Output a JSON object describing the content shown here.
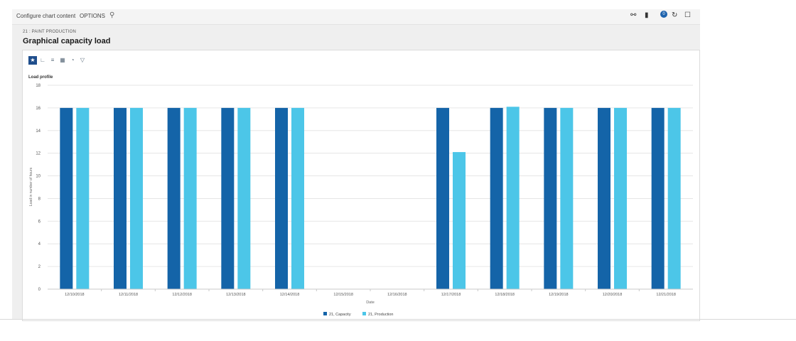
{
  "toolbar": {
    "configure_label": "Configure chart content",
    "options_label": "OPTIONS",
    "search_icon": "search-icon",
    "notification_count": "0"
  },
  "header": {
    "breadcrumb": "21 : PAINT PRODUCTION",
    "title": "Graphical capacity load"
  },
  "chart_toolbar": {
    "icons": [
      "star-icon",
      "line-chart-icon",
      "bar-chart-icon",
      "column-chart-icon",
      "pie-chart-icon",
      "filter-icon"
    ]
  },
  "colors": {
    "capacity": "#1464a8",
    "production": "#4cc6e8",
    "grid": "#e6e6e6",
    "axis": "#c8c8c8"
  },
  "chart_data": {
    "type": "bar",
    "title": "Load profile",
    "xlabel": "Date",
    "ylabel": "Load in number of hours",
    "ylim": [
      0,
      18
    ],
    "yticks": [
      0,
      2,
      4,
      6,
      8,
      10,
      12,
      14,
      16,
      18
    ],
    "categories": [
      "12/10/2018",
      "12/11/2018",
      "12/12/2018",
      "12/13/2018",
      "12/14/2018",
      "12/15/2018",
      "12/16/2018",
      "12/17/2018",
      "12/18/2018",
      "12/19/2018",
      "12/20/2018",
      "12/21/2018"
    ],
    "series": [
      {
        "name": "21, Capacity",
        "values": [
          16,
          16,
          16,
          16,
          16,
          0,
          0,
          16,
          16,
          16,
          16,
          16
        ]
      },
      {
        "name": "21, Production",
        "values": [
          16,
          16,
          16,
          16,
          16,
          0,
          0,
          12.1,
          16.1,
          16,
          16,
          16
        ]
      }
    ],
    "legend": "bottom-center"
  }
}
